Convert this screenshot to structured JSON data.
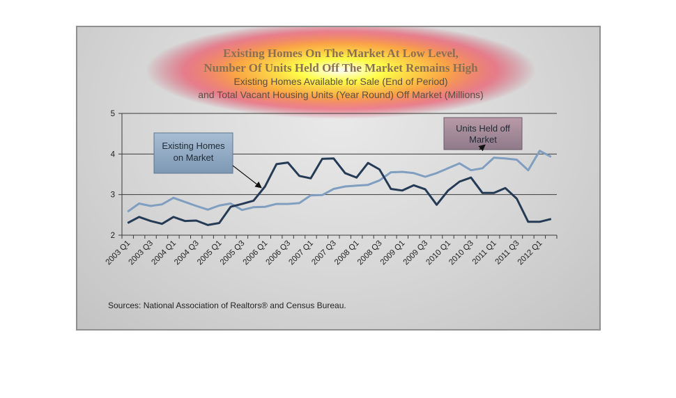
{
  "chart_data": {
    "type": "line",
    "title_line1": "Existing Homes On The Market At Low Level,",
    "title_line2": "Number Of Units Held Off The Market Remains High",
    "subtitle_line1": "Existing Homes Available for Sale (End of Period)",
    "subtitle_line2": "and Total Vacant Housing Units (Year Round) Off Market (Millions)",
    "ylim": [
      2,
      5
    ],
    "yticks": [
      2,
      3,
      4,
      5
    ],
    "grid": true,
    "x": [
      "2003 Q1",
      "2003 Q2",
      "2003 Q3",
      "2003 Q4",
      "2004 Q1",
      "2004 Q2",
      "2004 Q3",
      "2004 Q4",
      "2005 Q1",
      "2005 Q2",
      "2005 Q3",
      "2005 Q4",
      "2006 Q1",
      "2006 Q2",
      "2006 Q3",
      "2006 Q4",
      "2007 Q1",
      "2007 Q2",
      "2007 Q3",
      "2007 Q4",
      "2008 Q1",
      "2008 Q2",
      "2008 Q3",
      "2008 Q4",
      "2009 Q1",
      "2009 Q2",
      "2009 Q3",
      "2009 Q4",
      "2010 Q1",
      "2010 Q2",
      "2010 Q3",
      "2010 Q4",
      "2011 Q1",
      "2011 Q2",
      "2011 Q3",
      "2011 Q4",
      "2012 Q1",
      "2012 Q2"
    ],
    "xtick_labels": [
      "2003 Q1",
      "2003 Q3",
      "2004 Q1",
      "2004 Q3",
      "2005 Q1",
      "2005 Q3",
      "2006 Q1",
      "2006 Q3",
      "2007 Q1",
      "2007 Q3",
      "2008 Q1",
      "2008 Q3",
      "2009 Q1",
      "2009 Q3",
      "2010 Q1",
      "2010 Q3",
      "2011 Q1",
      "2011 Q3",
      "2012 Q1"
    ],
    "series": [
      {
        "name": "Existing Homes on Market",
        "color": "#243a55",
        "values": [
          2.3,
          2.45,
          2.35,
          2.28,
          2.45,
          2.35,
          2.36,
          2.25,
          2.3,
          2.7,
          2.77,
          2.85,
          3.2,
          3.75,
          3.79,
          3.46,
          3.4,
          3.88,
          3.89,
          3.53,
          3.42,
          3.78,
          3.62,
          3.14,
          3.1,
          3.23,
          3.13,
          2.75,
          3.1,
          3.32,
          3.42,
          3.04,
          3.04,
          3.16,
          2.9,
          2.33,
          2.33,
          2.4
        ]
      },
      {
        "name": "Units Held off Market",
        "color": "#7f9ec0",
        "values": [
          2.58,
          2.78,
          2.72,
          2.76,
          2.92,
          2.82,
          2.72,
          2.63,
          2.73,
          2.78,
          2.62,
          2.69,
          2.7,
          2.77,
          2.77,
          2.79,
          2.98,
          2.99,
          3.14,
          3.2,
          3.22,
          3.24,
          3.35,
          3.55,
          3.56,
          3.53,
          3.44,
          3.53,
          3.65,
          3.77,
          3.6,
          3.65,
          3.91,
          3.89,
          3.86,
          3.6,
          4.08,
          3.93
        ]
      }
    ],
    "callouts": {
      "existing_line1": "Existing Homes",
      "existing_line2": "on Market",
      "held_line1": "Units Held off",
      "held_line2": "Market"
    },
    "source": "Sources: National Association of Realtors® and Census Bureau."
  }
}
